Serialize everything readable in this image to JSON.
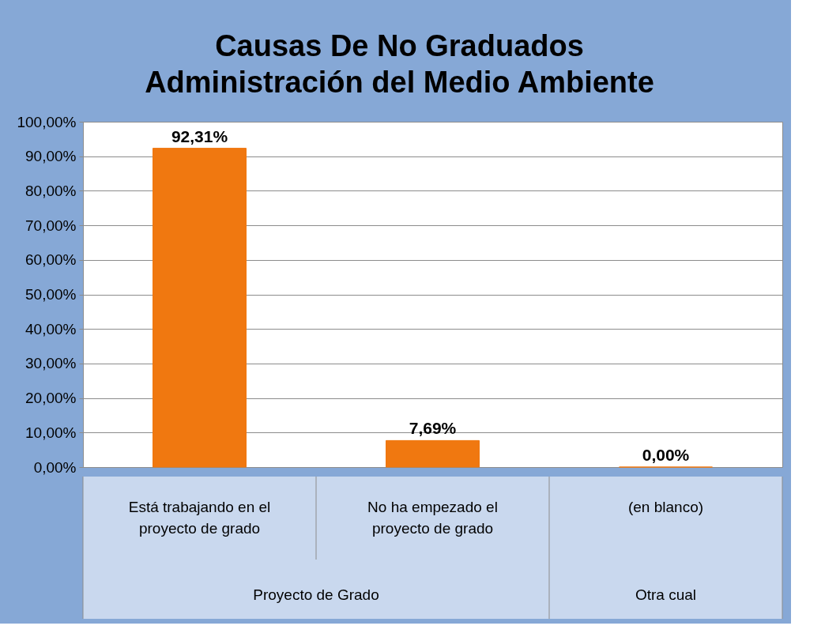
{
  "chart_data": {
    "type": "bar",
    "title": "Causas De No Graduados",
    "subtitle": "Administración del Medio Ambiente",
    "categories": [
      "Está trabajando en el proyecto de grado",
      "No ha empezado el proyecto de grado",
      "(en blanco)"
    ],
    "values": [
      92.31,
      7.69,
      0
    ],
    "value_labels": [
      "92,31%",
      "7,69%",
      "0,00%"
    ],
    "color": "#f07810",
    "ylim": [
      0,
      100
    ],
    "yticks": [
      {
        "value": 0,
        "label": "0,00%"
      },
      {
        "value": 10,
        "label": "10,00%"
      },
      {
        "value": 20,
        "label": "20,00%"
      },
      {
        "value": 30,
        "label": "30,00%"
      },
      {
        "value": 40,
        "label": "40,00%"
      },
      {
        "value": 50,
        "label": "50,00%"
      },
      {
        "value": 60,
        "label": "60,00%"
      },
      {
        "value": 70,
        "label": "70,00%"
      },
      {
        "value": 80,
        "label": "80,00%"
      },
      {
        "value": 90,
        "label": "90,00%"
      },
      {
        "value": 100,
        "label": "100,00%"
      }
    ],
    "grid": true,
    "annotations": [
      "Proyecto de Grado",
      "Otra cual"
    ]
  }
}
